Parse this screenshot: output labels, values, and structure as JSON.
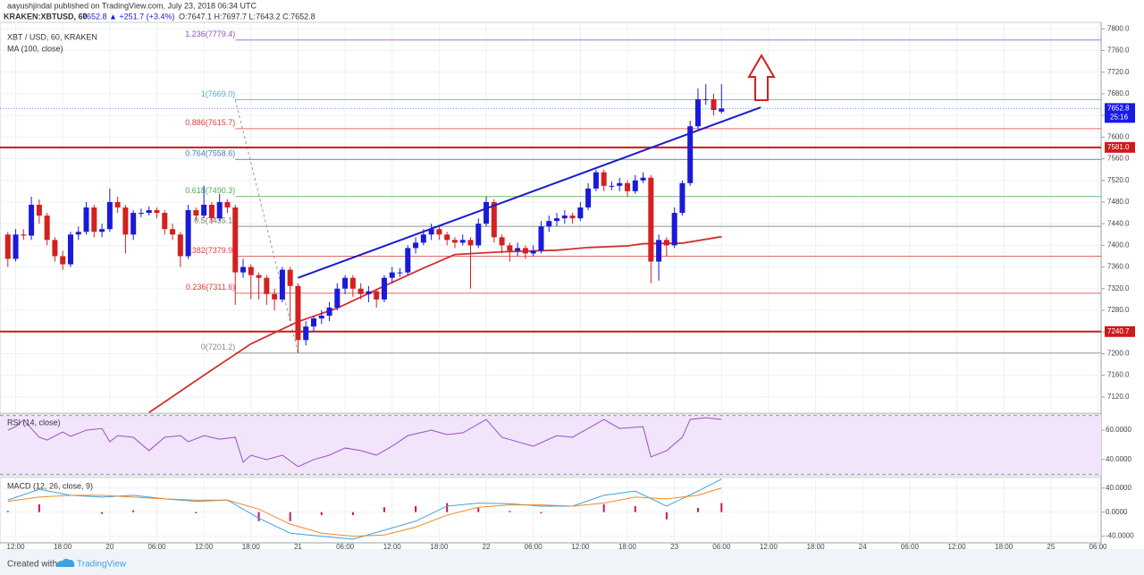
{
  "header": {
    "author": "aayushjindal published on TradingView.com, July 23, 2018 06:34 UTC",
    "symbol": "KRAKEN:XBTUSD, 60",
    "price": "7652.8",
    "change": "▲ +251.7 (+3.4%)",
    "ohlc": "O:7647.1 H:7697.7 L:7643.2 C:7652.8"
  },
  "footer": {
    "created": "Created with",
    "brand": "TradingView"
  },
  "chart_data": [
    {
      "type": "candlestick",
      "title": "XBT / USD, 60, KRAKEN",
      "xlim": [
        -2,
        138.4
      ],
      "ylim": [
        7090,
        7812
      ],
      "xticks": [
        {
          "value": 0,
          "label": "12:00"
        },
        {
          "value": 6,
          "label": "18:00"
        },
        {
          "value": 12,
          "label": "20"
        },
        {
          "value": 18,
          "label": "06:00"
        },
        {
          "value": 24,
          "label": "12:00"
        },
        {
          "value": 30,
          "label": "18:00"
        },
        {
          "value": 36,
          "label": "21"
        },
        {
          "value": 42,
          "label": "06:00"
        },
        {
          "value": 48,
          "label": "12:00"
        },
        {
          "value": 54,
          "label": "18:00"
        },
        {
          "value": 60,
          "label": "22"
        },
        {
          "value": 66,
          "label": "06:00"
        },
        {
          "value": 72,
          "label": "12:00"
        },
        {
          "value": 78,
          "label": "18:00"
        },
        {
          "value": 84,
          "label": "23"
        },
        {
          "value": 90,
          "label": "06:00"
        },
        {
          "value": 96,
          "label": "12:00"
        },
        {
          "value": 102,
          "label": "18:00"
        },
        {
          "value": 108,
          "label": "24"
        },
        {
          "value": 114,
          "label": "06:00"
        },
        {
          "value": 120,
          "label": "12:00"
        },
        {
          "value": 126,
          "label": "18:00"
        },
        {
          "value": 132,
          "label": "25"
        },
        {
          "value": 138,
          "label": "06:00"
        }
      ],
      "yticks": [
        {
          "value": 7120,
          "label": "7120.0"
        },
        {
          "value": 7160,
          "label": "7160.0"
        },
        {
          "value": 7200,
          "label": "7200.0"
        },
        {
          "value": 7240,
          "label": "7240.0"
        },
        {
          "value": 7280,
          "label": "7280.0"
        },
        {
          "value": 7320,
          "label": "7320.0"
        },
        {
          "value": 7360,
          "label": "7360.0"
        },
        {
          "value": 7400,
          "label": "7400.0"
        },
        {
          "value": 7440,
          "label": "7440.0"
        },
        {
          "value": 7480,
          "label": "7480.0"
        },
        {
          "value": 7520,
          "label": "7520.0"
        },
        {
          "value": 7560,
          "label": "7560.0"
        },
        {
          "value": 7600,
          "label": "7600.0"
        },
        {
          "value": 7640,
          "label": "7640.0"
        },
        {
          "value": 7680,
          "label": "7680.0"
        },
        {
          "value": 7720,
          "label": "7720.0"
        },
        {
          "value": 7760,
          "label": "7760.0"
        },
        {
          "value": 7800,
          "label": "7800.0"
        }
      ],
      "grid": true,
      "up_color": "#1a1ad9",
      "down_color": "#d42020",
      "x": [
        -1,
        0,
        1,
        2,
        3,
        4,
        5,
        6,
        7,
        8,
        9,
        10,
        11,
        12,
        13,
        14,
        15,
        16,
        17,
        18,
        19,
        20,
        21,
        22,
        23,
        24,
        25,
        26,
        27,
        28,
        29,
        30,
        31,
        32,
        33,
        34,
        35,
        36,
        37,
        38,
        39,
        40,
        41,
        42,
        43,
        44,
        45,
        46,
        47,
        48,
        49,
        50,
        51,
        52,
        53,
        54,
        55,
        56,
        57,
        58,
        59,
        60,
        61,
        62,
        63,
        64,
        65,
        66,
        67,
        68,
        69,
        70,
        71,
        72,
        73,
        74,
        75,
        76,
        77,
        78,
        79,
        80,
        81,
        82,
        83,
        84,
        85,
        86,
        87,
        88,
        89,
        90
      ],
      "open": [
        7420,
        7375,
        7420,
        7418,
        7475,
        7455,
        7410,
        7380,
        7365,
        7420,
        7425,
        7470,
        7425,
        7430,
        7480,
        7470,
        7420,
        7460,
        7460,
        7465,
        7460,
        7430,
        7420,
        7380,
        7465,
        7455,
        7475,
        7450,
        7480,
        7470,
        7350,
        7360,
        7345,
        7340,
        7310,
        7300,
        7355,
        7325,
        7225,
        7250,
        7265,
        7270,
        7285,
        7320,
        7340,
        7320,
        7310,
        7315,
        7300,
        7340,
        7350,
        7350,
        7395,
        7405,
        7420,
        7430,
        7420,
        7410,
        7405,
        7410,
        7400,
        7440,
        7480,
        7415,
        7400,
        7390,
        7395,
        7385,
        7390,
        7435,
        7445,
        7450,
        7455,
        7450,
        7470,
        7505,
        7535,
        7510,
        7510,
        7515,
        7500,
        7520,
        7525,
        7370,
        7410,
        7400,
        7460,
        7515,
        7620,
        7670,
        7670,
        7647.1
      ],
      "high": [
        7425,
        7430,
        7430,
        7490,
        7485,
        7460,
        7415,
        7390,
        7425,
        7435,
        7480,
        7475,
        7440,
        7505,
        7490,
        7475,
        7465,
        7468,
        7472,
        7470,
        7465,
        7440,
        7425,
        7475,
        7470,
        7510,
        7480,
        7495,
        7485,
        7475,
        7375,
        7365,
        7350,
        7345,
        7320,
        7360,
        7360,
        7330,
        7260,
        7270,
        7280,
        7295,
        7330,
        7345,
        7345,
        7330,
        7325,
        7320,
        7345,
        7360,
        7358,
        7400,
        7415,
        7430,
        7440,
        7435,
        7425,
        7415,
        7420,
        7415,
        7450,
        7490,
        7485,
        7420,
        7405,
        7405,
        7400,
        7400,
        7445,
        7455,
        7460,
        7465,
        7460,
        7480,
        7515,
        7540,
        7540,
        7518,
        7525,
        7520,
        7530,
        7535,
        7530,
        7420,
        7415,
        7470,
        7520,
        7630,
        7690,
        7697.7,
        7680,
        7697.7
      ],
      "low": [
        7360,
        7370,
        7410,
        7410,
        7440,
        7400,
        7370,
        7355,
        7360,
        7410,
        7420,
        7415,
        7415,
        7425,
        7460,
        7385,
        7410,
        7452,
        7455,
        7450,
        7420,
        7410,
        7360,
        7375,
        7445,
        7450,
        7440,
        7445,
        7460,
        7290,
        7340,
        7300,
        7300,
        7290,
        7280,
        7295,
        7260,
        7201.2,
        7215,
        7240,
        7255,
        7260,
        7280,
        7310,
        7305,
        7300,
        7295,
        7285,
        7295,
        7330,
        7342,
        7345,
        7385,
        7400,
        7410,
        7410,
        7400,
        7395,
        7400,
        7320,
        7395,
        7435,
        7405,
        7385,
        7370,
        7380,
        7375,
        7380,
        7385,
        7425,
        7435,
        7440,
        7440,
        7445,
        7465,
        7500,
        7500,
        7502,
        7500,
        7490,
        7495,
        7515,
        7330,
        7335,
        7380,
        7395,
        7455,
        7510,
        7615,
        7660,
        7640,
        7643.2
      ],
      "close": [
        7375,
        7420,
        7418,
        7475,
        7455,
        7410,
        7380,
        7365,
        7420,
        7425,
        7470,
        7425,
        7430,
        7480,
        7470,
        7420,
        7460,
        7460,
        7465,
        7460,
        7430,
        7420,
        7380,
        7465,
        7455,
        7475,
        7450,
        7480,
        7470,
        7350,
        7360,
        7345,
        7340,
        7310,
        7300,
        7355,
        7325,
        7225,
        7250,
        7265,
        7270,
        7285,
        7320,
        7340,
        7320,
        7310,
        7315,
        7300,
        7340,
        7350,
        7350,
        7395,
        7405,
        7420,
        7430,
        7420,
        7410,
        7405,
        7410,
        7400,
        7440,
        7480,
        7415,
        7400,
        7390,
        7395,
        7385,
        7390,
        7435,
        7445,
        7450,
        7455,
        7450,
        7470,
        7505,
        7535,
        7510,
        7510,
        7515,
        7500,
        7520,
        7525,
        7370,
        7410,
        7400,
        7460,
        7515,
        7620,
        7670,
        7670,
        7650,
        7652.8
      ],
      "ma": {
        "name": "MA (100, close)",
        "color": "#d32f2f",
        "x": [
          17,
          24,
          30,
          36,
          41,
          47,
          52,
          56,
          62,
          69,
          73,
          78,
          80,
          85,
          90
        ],
        "values": [
          7091,
          7160,
          7218,
          7259,
          7284,
          7325,
          7358,
          7383,
          7388,
          7391,
          7396,
          7399,
          7403,
          7404,
          7416
        ]
      },
      "trendline": {
        "color": "#1a1acc",
        "x": [
          36,
          95
        ],
        "values": [
          7340,
          7655
        ]
      },
      "fib": {
        "x": [
          28,
          36
        ],
        "levels": [
          {
            "label": "1.236(7779.4)",
            "value": 7779.4,
            "color": "#9b4dca"
          },
          {
            "label": "1(7669.0)",
            "value": 7669.0,
            "color": "#5fa8d3"
          },
          {
            "label": "0.886(7615.7)",
            "value": 7615.7,
            "color": "#e0403a"
          },
          {
            "label": "0.764(7558.6)",
            "value": 7558.6,
            "color": "#3f7fb0"
          },
          {
            "label": "0.618(7490.3)",
            "value": 7490.3,
            "color": "#4caf50"
          },
          {
            "label": "0.5(7435.1)",
            "value": 7435.1,
            "color": "#6f7f6f"
          },
          {
            "label": "0.382(7379.9)",
            "value": 7379.9,
            "color": "#e0403a"
          },
          {
            "label": "0.236(7311.6)",
            "value": 7311.6,
            "color": "#e0403a"
          },
          {
            "label": "0(7201.2)",
            "value": 7201.2,
            "color": "#888888"
          }
        ]
      },
      "levels": [
        {
          "value": 7581.0,
          "label": "7581.0",
          "color": "#cc1a1a"
        },
        {
          "value": 7240.7,
          "label": "7240.7",
          "color": "#cc1a1a"
        }
      ],
      "last": {
        "value": 7652.8,
        "label": "7652.8",
        "timer": "25:16",
        "color": "#1a1ae6"
      }
    },
    {
      "type": "line",
      "title": "RSI (14, close)",
      "ylim": [
        29,
        71
      ],
      "band": [
        30,
        70
      ],
      "band_color": "#f1e4fb",
      "yticks": [
        {
          "value": 60,
          "label": "60.0000"
        },
        {
          "value": 40,
          "label": "40.0000"
        }
      ],
      "color": "#9c4fc8",
      "x": [
        -1,
        0,
        1,
        3,
        4,
        6,
        7,
        9,
        11,
        12,
        13,
        15,
        17,
        19,
        21,
        22,
        24,
        26,
        28,
        29,
        30,
        32,
        34,
        36,
        38,
        40,
        42,
        44,
        46,
        48,
        50,
        53,
        55,
        57,
        60,
        62,
        64,
        66,
        69,
        71,
        73,
        75,
        77,
        80,
        81,
        83,
        85,
        86,
        88,
        90
      ],
      "values": [
        60,
        62.4,
        67,
        55.2,
        53.3,
        58.8,
        55.8,
        60,
        61.2,
        52.1,
        56.3,
        55.2,
        46.1,
        55.2,
        56.3,
        52.1,
        56.3,
        53.9,
        55.2,
        38.2,
        43,
        40,
        43,
        35.2,
        40,
        43,
        47.9,
        46.1,
        43,
        49.1,
        56.3,
        60,
        57,
        58.2,
        67.3,
        55.2,
        52.1,
        49.1,
        56.3,
        55.2,
        61.2,
        67.3,
        61.2,
        62.4,
        41.8,
        46.1,
        55.2,
        67.3,
        68.5,
        67.3
      ]
    },
    {
      "type": "line",
      "title": "MACD (12, 26, close, 9)",
      "ylim": [
        -51,
        57.5
      ],
      "yticks": [
        {
          "value": 40,
          "label": "40.0000"
        },
        {
          "value": 0,
          "label": "0.0000"
        },
        {
          "value": -40,
          "label": "-40.0000"
        }
      ],
      "x": [
        -1,
        3,
        7,
        11,
        15,
        19,
        23,
        27,
        31,
        35,
        39,
        43,
        47,
        51,
        55,
        59,
        63,
        67,
        71,
        75,
        79,
        83,
        87,
        90
      ],
      "series": [
        {
          "color": "#3fa2e0",
          "values": [
            20,
            38,
            28,
            25,
            28,
            22,
            18,
            20,
            -10,
            -35,
            -40,
            -45,
            -30,
            -15,
            10,
            15,
            14,
            10,
            10,
            28,
            35,
            10,
            35,
            55
          ]
        },
        {
          "color": "#f08a24",
          "values": [
            18,
            25,
            28,
            28,
            25,
            22,
            20,
            20,
            5,
            -20,
            -35,
            -40,
            -38,
            -25,
            -5,
            8,
            12,
            12,
            10,
            15,
            25,
            22,
            28,
            40
          ]
        }
      ],
      "histogram": {
        "color": "#c2185b",
        "values": [
          2,
          13,
          0,
          -3,
          3,
          0,
          -2,
          0,
          -15,
          -15,
          -5,
          -5,
          8,
          10,
          15,
          7,
          2,
          -2,
          0,
          13,
          10,
          -12,
          7,
          15
        ]
      }
    }
  ]
}
